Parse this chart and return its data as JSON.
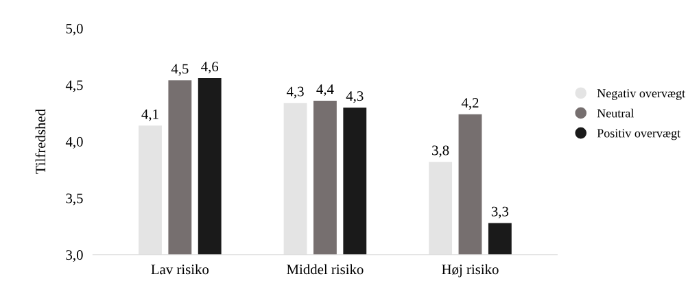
{
  "chart_data": {
    "type": "bar",
    "ylabel": "Tilfredshed",
    "categories": [
      "Lav risiko",
      "Middel risiko",
      "Høj risiko"
    ],
    "series": [
      {
        "name": "Negativ overvægt",
        "color": "#e4e4e4",
        "values": [
          4.14,
          4.34,
          3.82
        ],
        "value_labels": [
          "4,1",
          "4,3",
          "3,8"
        ]
      },
      {
        "name": "Neutral",
        "color": "#766f6f",
        "values": [
          4.54,
          4.36,
          4.24
        ],
        "value_labels": [
          "4,5",
          "4,4",
          "4,2"
        ]
      },
      {
        "name": "Positiv overvægt",
        "color": "#1a1a1a",
        "values": [
          4.56,
          4.3,
          3.28
        ],
        "value_labels": [
          "4,6",
          "4,3",
          "3,3"
        ]
      }
    ],
    "ylim": [
      3,
      5
    ],
    "yticks": [
      {
        "value": 3,
        "label": "3,0"
      },
      {
        "value": 3.5,
        "label": "3,5"
      },
      {
        "value": 4,
        "label": "4,0"
      },
      {
        "value": 4.5,
        "label": "4,5"
      },
      {
        "value": 5,
        "label": "5,0"
      }
    ],
    "grid": false,
    "legend": "right"
  }
}
